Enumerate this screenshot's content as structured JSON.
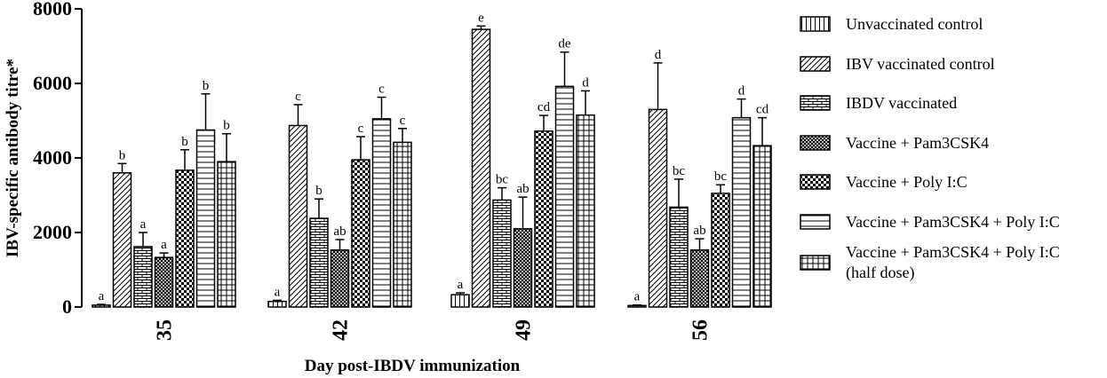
{
  "chart_data": {
    "type": "bar",
    "title": "",
    "xlabel": "Day post-IBDV immunization",
    "ylabel": "IBV-specific antibody titre*",
    "ylim": [
      0,
      8000
    ],
    "yticks": [
      0,
      2000,
      4000,
      6000,
      8000
    ],
    "categories": [
      "35",
      "42",
      "49",
      "56"
    ],
    "legend_position": "right",
    "series": [
      {
        "name": "Unvaccinated control",
        "pattern": "vertical-lines",
        "values": [
          50,
          150,
          330,
          40
        ],
        "errors": [
          20,
          30,
          50,
          15
        ],
        "labels": [
          "a",
          "a",
          "a",
          "a"
        ]
      },
      {
        "name": "IBV vaccinated control",
        "pattern": "diagonal-lines",
        "values": [
          3600,
          4870,
          7450,
          5300
        ],
        "errors": [
          250,
          560,
          90,
          1250
        ],
        "labels": [
          "b",
          "c",
          "e",
          "d"
        ]
      },
      {
        "name": "IBDV vaccinated",
        "pattern": "brick",
        "values": [
          1620,
          2380,
          2870,
          2680
        ],
        "errors": [
          380,
          520,
          330,
          750
        ],
        "labels": [
          "a",
          "b",
          "bc",
          "bc"
        ]
      },
      {
        "name": "Vaccine + Pam3CSK4",
        "pattern": "crosshatch",
        "values": [
          1330,
          1530,
          2100,
          1530
        ],
        "errors": [
          120,
          280,
          850,
          300
        ],
        "labels": [
          "a",
          "ab",
          "ab",
          "ab"
        ]
      },
      {
        "name": "Vaccine + Poly I:C",
        "pattern": "checker",
        "values": [
          3670,
          3950,
          4720,
          3050
        ],
        "errors": [
          550,
          620,
          420,
          230
        ],
        "labels": [
          "b",
          "c",
          "cd",
          "bc"
        ]
      },
      {
        "name": "Vaccine + Pam3CSK4 + Poly I:C",
        "pattern": "horizontal-lines",
        "values": [
          4750,
          5050,
          5920,
          5080
        ],
        "errors": [
          970,
          580,
          920,
          500
        ],
        "labels": [
          "b",
          "c",
          "de",
          "d"
        ]
      },
      {
        "name": "Vaccine + Pam3CSK4 + Poly I:C (half dose)",
        "legend_lines": [
          "Vaccine + Pam3CSK4 + Poly I:C",
          "(half dose)"
        ],
        "pattern": "grid",
        "values": [
          3900,
          4420,
          5150,
          4330
        ],
        "errors": [
          750,
          370,
          650,
          750
        ],
        "labels": [
          "b",
          "c",
          "d",
          "cd"
        ]
      }
    ]
  }
}
